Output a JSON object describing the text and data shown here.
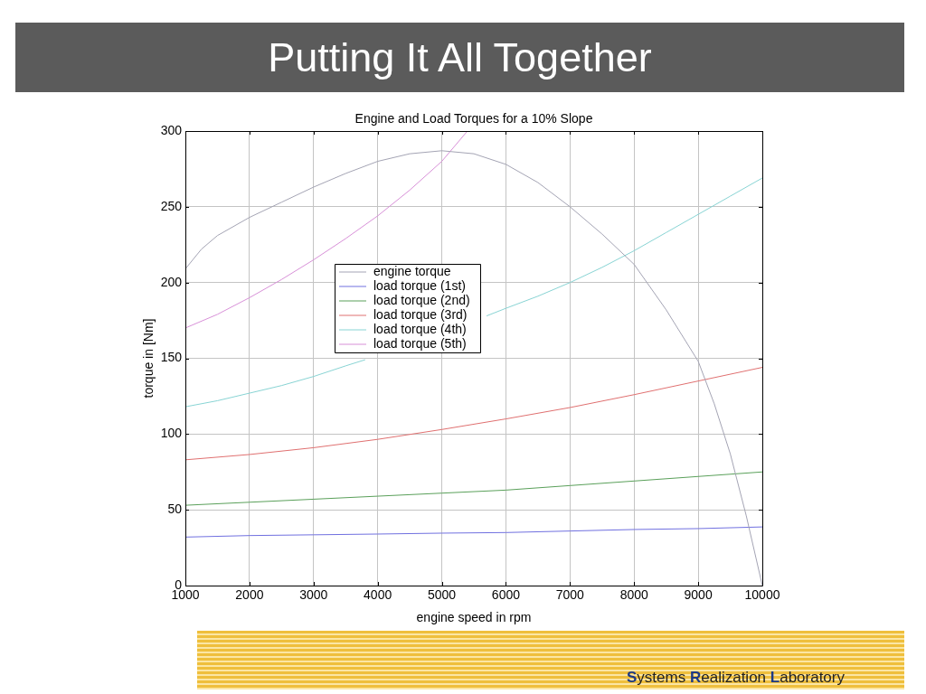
{
  "chart_data": {
    "type": "line",
    "title": "Putting It All Together",
    "subtitle": "Engine and Load Torques for a 10% Slope",
    "xlabel": "engine speed in rpm",
    "ylabel": "torque in [Nm]",
    "xlim": [
      1000,
      10000
    ],
    "xticks": [
      1000,
      2000,
      3000,
      4000,
      5000,
      6000,
      7000,
      8000,
      9000,
      10000
    ],
    "ylim": [
      0,
      300
    ],
    "yticks": [
      0,
      50,
      100,
      150,
      200,
      250,
      300
    ],
    "grid": true,
    "legend": "center",
    "series": [
      {
        "name": "engine torque",
        "color": "#a4a4b4",
        "x": [
          1000,
          1250,
          1500,
          2000,
          2500,
          3000,
          3500,
          4000,
          4500,
          5000,
          5500,
          6000,
          6500,
          7000,
          7500,
          8000,
          8500,
          9000,
          9250,
          9500,
          9750,
          10000
        ],
        "values": [
          209,
          222,
          231,
          243,
          253,
          263,
          272,
          280,
          285,
          287,
          285,
          278,
          266,
          250,
          232,
          212,
          182,
          148,
          120,
          87,
          46,
          0
        ]
      },
      {
        "name": "load torque (1st)",
        "color": "#7070e0",
        "x": [
          1000,
          2000,
          3000,
          4000,
          5000,
          6000,
          7000,
          8000,
          9000,
          10000
        ],
        "values": [
          32,
          33,
          33.5,
          34,
          34.6,
          35,
          36,
          37,
          37.6,
          38.7
        ]
      },
      {
        "name": "load torque (2nd)",
        "color": "#5aa05a",
        "x": [
          1000,
          2000,
          3000,
          4000,
          5000,
          6000,
          7000,
          8000,
          9000,
          10000
        ],
        "values": [
          53,
          55,
          57,
          59,
          61,
          63,
          66,
          69,
          72,
          75
        ]
      },
      {
        "name": "load torque (3rd)",
        "color": "#e07070",
        "x": [
          1000,
          2000,
          3000,
          4000,
          5000,
          6000,
          7000,
          8000,
          9000,
          10000
        ],
        "values": [
          83,
          86.5,
          91,
          96.5,
          103,
          110,
          117.5,
          126,
          135,
          144
        ]
      },
      {
        "name": "load torque (4th)",
        "color": "#88d4d4",
        "x": [
          1000,
          1500,
          2000,
          2500,
          3000,
          3500,
          3800,
          4800,
          5700,
          6000,
          6500,
          7000,
          7500,
          8000,
          8500,
          9000,
          9500,
          10000
        ],
        "values": [
          118,
          122,
          127,
          132,
          138,
          145,
          149,
          null,
          178,
          183,
          191,
          200,
          210,
          221,
          233,
          245,
          257,
          269
        ]
      },
      {
        "name": "load torque (5th)",
        "color": "#d890d8",
        "x": [
          1000,
          1500,
          2000,
          2500,
          3000,
          3500,
          4000,
          4500,
          5000,
          5400
        ],
        "values": [
          170,
          179,
          190,
          202,
          215,
          229,
          244,
          261,
          280,
          300
        ]
      }
    ],
    "annotations": [
      "Systems Realization Laboratory"
    ]
  }
}
